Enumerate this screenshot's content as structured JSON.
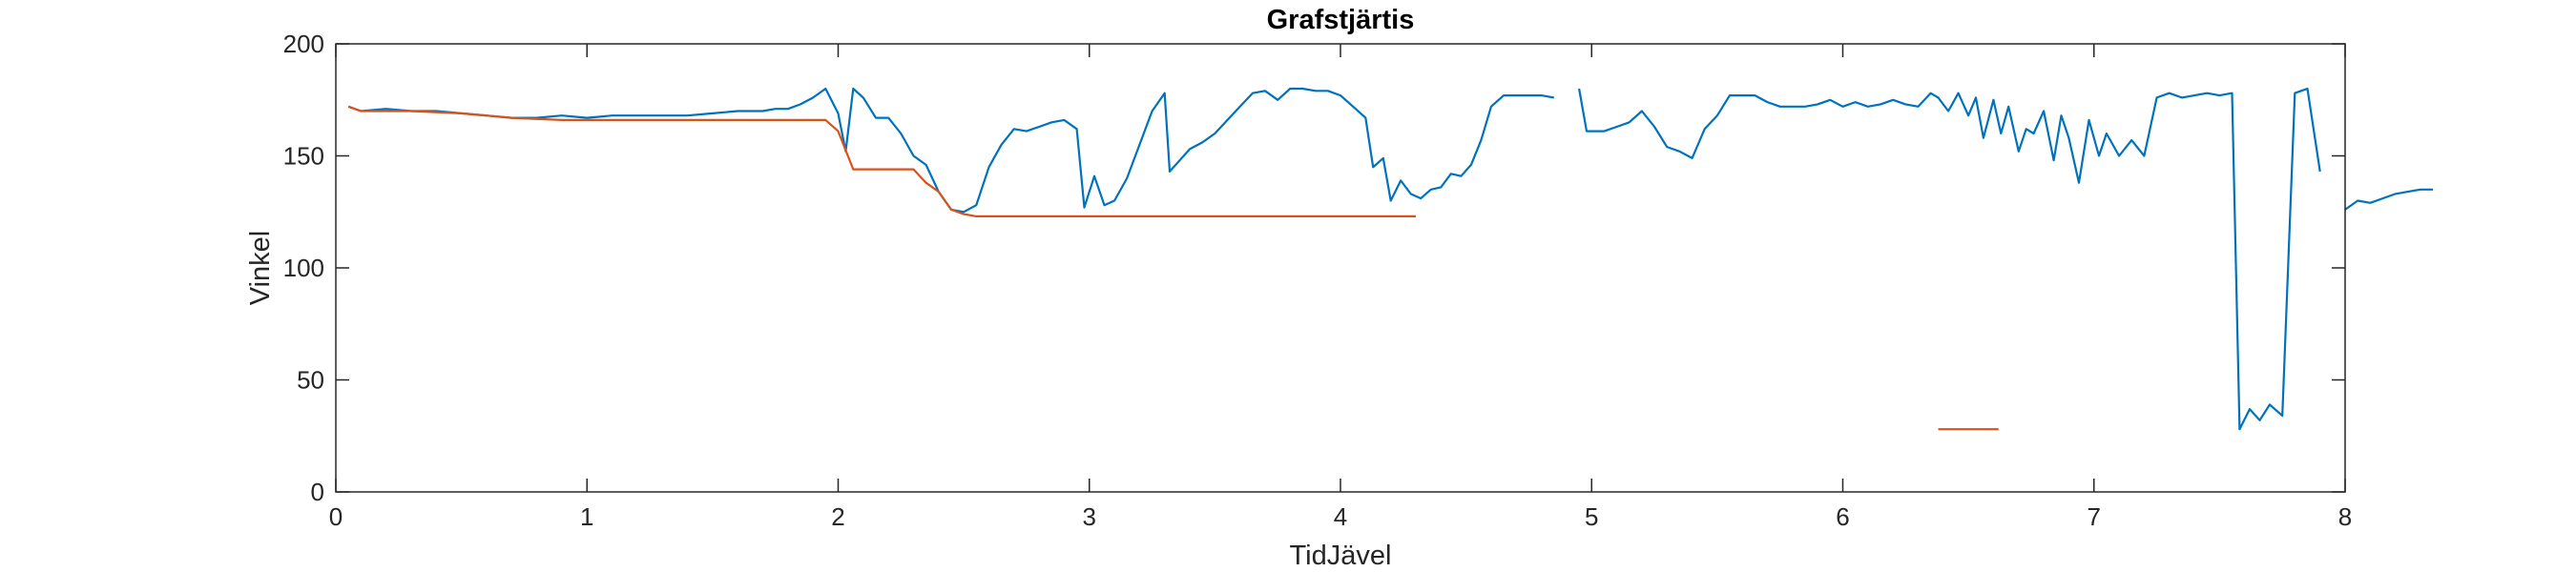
{
  "chart_data": {
    "type": "line",
    "title": "Grafstjärtis",
    "xlabel": "TidJävel",
    "ylabel": "Vinkel",
    "xlim": [
      0,
      8
    ],
    "ylim": [
      0,
      200
    ],
    "xticks": [
      0,
      1,
      2,
      3,
      4,
      5,
      6,
      7,
      8
    ],
    "yticks": [
      0,
      50,
      100,
      150,
      200
    ],
    "xtick_labels": [
      "0",
      "1",
      "2",
      "3",
      "4",
      "5",
      "6",
      "7",
      "8"
    ],
    "ytick_labels": [
      "0",
      "50",
      "100",
      "150",
      "200"
    ],
    "grid": false,
    "legend": "none",
    "series": [
      {
        "color": "#0072BD",
        "segments": [
          [
            [
              0.05,
              172
            ],
            [
              0.1,
              170
            ],
            [
              0.2,
              171
            ],
            [
              0.3,
              170
            ],
            [
              0.4,
              170
            ],
            [
              0.5,
              169
            ],
            [
              0.6,
              168
            ],
            [
              0.7,
              167
            ],
            [
              0.8,
              167
            ],
            [
              0.9,
              168
            ],
            [
              1.0,
              167
            ],
            [
              1.1,
              168
            ],
            [
              1.2,
              168
            ],
            [
              1.3,
              168
            ],
            [
              1.4,
              168
            ],
            [
              1.5,
              169
            ],
            [
              1.6,
              170
            ],
            [
              1.7,
              170
            ],
            [
              1.75,
              171
            ],
            [
              1.8,
              171
            ],
            [
              1.85,
              173
            ],
            [
              1.9,
              176
            ],
            [
              1.95,
              180
            ],
            [
              2.0,
              169
            ],
            [
              2.03,
              152
            ],
            [
              2.06,
              180
            ],
            [
              2.1,
              176
            ],
            [
              2.15,
              167
            ],
            [
              2.2,
              167
            ],
            [
              2.25,
              160
            ],
            [
              2.3,
              150
            ],
            [
              2.35,
              146
            ],
            [
              2.4,
              134
            ],
            [
              2.45,
              126
            ],
            [
              2.5,
              125
            ],
            [
              2.55,
              128
            ],
            [
              2.6,
              145
            ],
            [
              2.65,
              155
            ],
            [
              2.7,
              162
            ],
            [
              2.75,
              161
            ],
            [
              2.8,
              163
            ],
            [
              2.85,
              165
            ],
            [
              2.9,
              166
            ],
            [
              2.95,
              162
            ],
            [
              2.98,
              127
            ],
            [
              3.02,
              141
            ],
            [
              3.06,
              128
            ],
            [
              3.1,
              130
            ],
            [
              3.15,
              140
            ],
            [
              3.2,
              155
            ],
            [
              3.25,
              170
            ],
            [
              3.3,
              178
            ],
            [
              3.32,
              143
            ],
            [
              3.36,
              148
            ],
            [
              3.4,
              153
            ],
            [
              3.45,
              156
            ],
            [
              3.5,
              160
            ],
            [
              3.55,
              166
            ],
            [
              3.6,
              172
            ],
            [
              3.65,
              178
            ],
            [
              3.7,
              179
            ],
            [
              3.75,
              175
            ],
            [
              3.8,
              180
            ],
            [
              3.85,
              180
            ],
            [
              3.9,
              179
            ],
            [
              3.95,
              179
            ],
            [
              4.0,
              177
            ],
            [
              4.05,
              172
            ],
            [
              4.1,
              167
            ],
            [
              4.13,
              145
            ],
            [
              4.17,
              149
            ],
            [
              4.2,
              130
            ],
            [
              4.24,
              139
            ],
            [
              4.28,
              133
            ],
            [
              4.32,
              131
            ],
            [
              4.36,
              135
            ],
            [
              4.4,
              136
            ],
            [
              4.44,
              142
            ],
            [
              4.48,
              141
            ],
            [
              4.52,
              146
            ],
            [
              4.56,
              157
            ],
            [
              4.6,
              172
            ],
            [
              4.65,
              177
            ],
            [
              4.7,
              177
            ],
            [
              4.75,
              177
            ],
            [
              4.8,
              177
            ],
            [
              4.85,
              176
            ]
          ],
          [
            [
              4.95,
              180
            ],
            [
              4.98,
              161
            ],
            [
              5.05,
              161
            ],
            [
              5.1,
              163
            ],
            [
              5.15,
              165
            ],
            [
              5.2,
              170
            ],
            [
              5.25,
              163
            ],
            [
              5.3,
              154
            ],
            [
              5.35,
              152
            ],
            [
              5.4,
              149
            ],
            [
              5.45,
              162
            ],
            [
              5.5,
              168
            ],
            [
              5.55,
              177
            ],
            [
              5.6,
              177
            ],
            [
              5.65,
              177
            ],
            [
              5.7,
              174
            ],
            [
              5.75,
              172
            ],
            [
              5.8,
              172
            ],
            [
              5.85,
              172
            ],
            [
              5.9,
              173
            ],
            [
              5.95,
              175
            ],
            [
              6.0,
              172
            ],
            [
              6.05,
              174
            ],
            [
              6.1,
              172
            ],
            [
              6.15,
              173
            ],
            [
              6.2,
              175
            ],
            [
              6.25,
              173
            ],
            [
              6.3,
              172
            ],
            [
              6.35,
              178
            ],
            [
              6.38,
              176
            ],
            [
              6.42,
              170
            ],
            [
              6.46,
              178
            ],
            [
              6.5,
              168
            ],
            [
              6.53,
              176
            ],
            [
              6.56,
              158
            ],
            [
              6.6,
              175
            ],
            [
              6.63,
              160
            ],
            [
              6.66,
              172
            ],
            [
              6.7,
              152
            ],
            [
              6.73,
              162
            ],
            [
              6.76,
              160
            ],
            [
              6.8,
              170
            ],
            [
              6.84,
              148
            ],
            [
              6.87,
              168
            ],
            [
              6.9,
              158
            ],
            [
              6.94,
              138
            ],
            [
              6.98,
              166
            ],
            [
              7.02,
              150
            ],
            [
              7.05,
              160
            ],
            [
              7.1,
              150
            ],
            [
              7.15,
              157
            ],
            [
              7.2,
              150
            ],
            [
              7.25,
              176
            ],
            [
              7.3,
              178
            ],
            [
              7.35,
              176
            ],
            [
              7.4,
              177
            ],
            [
              7.45,
              178
            ],
            [
              7.5,
              177
            ],
            [
              7.55,
              178
            ],
            [
              7.58,
              28
            ],
            [
              7.62,
              37
            ],
            [
              7.66,
              32
            ],
            [
              7.7,
              39
            ],
            [
              7.75,
              34
            ],
            [
              7.8,
              178
            ],
            [
              7.85,
              180
            ],
            [
              7.9,
              143
            ]
          ],
          [
            [
              8.0,
              126
            ],
            [
              8.05,
              130
            ],
            [
              8.1,
              129
            ],
            [
              8.15,
              131
            ],
            [
              8.2,
              133
            ],
            [
              8.25,
              134
            ],
            [
              8.3,
              135
            ],
            [
              8.35,
              135
            ]
          ]
        ]
      },
      {
        "color": "#D95319",
        "segments": [
          [
            [
              0.05,
              172
            ],
            [
              0.1,
              170
            ],
            [
              0.3,
              170
            ],
            [
              0.5,
              169
            ],
            [
              0.7,
              167
            ],
            [
              0.9,
              166
            ],
            [
              1.95,
              166
            ],
            [
              2.0,
              161
            ],
            [
              2.06,
              144
            ],
            [
              2.3,
              144
            ],
            [
              2.35,
              138
            ],
            [
              2.4,
              134
            ],
            [
              2.45,
              126
            ],
            [
              2.5,
              124
            ],
            [
              2.55,
              123
            ],
            [
              4.3,
              123
            ]
          ],
          [
            [
              6.38,
              28
            ],
            [
              6.62,
              28
            ]
          ]
        ]
      }
    ]
  }
}
